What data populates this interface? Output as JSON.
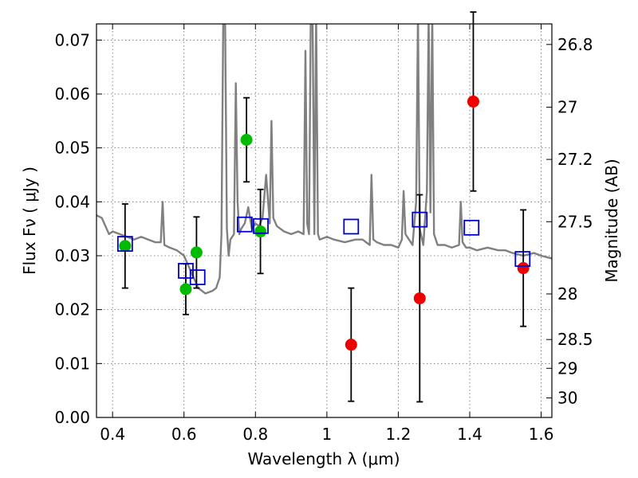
{
  "chart_data": {
    "type": "scatter",
    "xlabel": "Wavelength  λ (μm)",
    "ylabel": "Flux  Fν  ( μJy )",
    "ylabel_right": "Magnitude (AB)",
    "xlim": [
      0.355,
      1.63
    ],
    "ylim": [
      0.0,
      0.073
    ],
    "grid": true,
    "x_ticks": [
      {
        "value": 0.4,
        "label": "0.4"
      },
      {
        "value": 0.6,
        "label": "0.6"
      },
      {
        "value": 0.8,
        "label": "0.8"
      },
      {
        "value": 1.0,
        "label": "1"
      },
      {
        "value": 1.2,
        "label": "1.2"
      },
      {
        "value": 1.4,
        "label": "1.4"
      },
      {
        "value": 1.6,
        "label": "1.6"
      }
    ],
    "y_ticks": [
      {
        "value": 0.0,
        "label": "0.00"
      },
      {
        "value": 0.01,
        "label": "0.01"
      },
      {
        "value": 0.02,
        "label": "0.02"
      },
      {
        "value": 0.03,
        "label": "0.03"
      },
      {
        "value": 0.04,
        "label": "0.04"
      },
      {
        "value": 0.05,
        "label": "0.05"
      },
      {
        "value": 0.06,
        "label": "0.06"
      },
      {
        "value": 0.07,
        "label": "0.07"
      }
    ],
    "mag_ticks": [
      {
        "mag": 26.8,
        "label": "26.8"
      },
      {
        "mag": 27.0,
        "label": "27"
      },
      {
        "mag": 27.2,
        "label": "27.2"
      },
      {
        "mag": 27.5,
        "label": "27.5"
      },
      {
        "mag": 28.0,
        "label": "28"
      },
      {
        "mag": 28.5,
        "label": "28.5"
      },
      {
        "mag": 29.0,
        "label": "29"
      },
      {
        "mag": 30.0,
        "label": "30"
      }
    ],
    "colors": {
      "spectrum": "#808080",
      "green_points": "#00bb00",
      "red_points": "#ee0000",
      "model_squares": "#0000cc",
      "error_bars": "#000000",
      "grid": "#666666"
    },
    "spectrum": {
      "x": [
        0.355,
        0.37,
        0.38,
        0.39,
        0.4,
        0.42,
        0.44,
        0.46,
        0.48,
        0.5,
        0.52,
        0.535,
        0.54,
        0.545,
        0.56,
        0.58,
        0.6,
        0.62,
        0.64,
        0.66,
        0.68,
        0.69,
        0.7,
        0.705,
        0.71,
        0.715,
        0.72,
        0.725,
        0.73,
        0.74,
        0.745,
        0.75,
        0.755,
        0.76,
        0.77,
        0.78,
        0.79,
        0.8,
        0.81,
        0.82,
        0.83,
        0.84,
        0.845,
        0.85,
        0.86,
        0.88,
        0.9,
        0.92,
        0.935,
        0.94,
        0.945,
        0.95,
        0.955,
        0.96,
        0.965,
        0.97,
        0.975,
        0.98,
        1.0,
        1.02,
        1.05,
        1.08,
        1.1,
        1.12,
        1.125,
        1.13,
        1.14,
        1.16,
        1.18,
        1.2,
        1.21,
        1.215,
        1.22,
        1.24,
        1.25,
        1.255,
        1.26,
        1.27,
        1.28,
        1.285,
        1.29,
        1.295,
        1.3,
        1.31,
        1.33,
        1.35,
        1.37,
        1.375,
        1.38,
        1.39,
        1.4,
        1.42,
        1.45,
        1.48,
        1.5,
        1.52,
        1.55,
        1.58,
        1.6,
        1.63
      ],
      "y": [
        0.0375,
        0.037,
        0.0355,
        0.034,
        0.0345,
        0.034,
        0.0335,
        0.033,
        0.0335,
        0.033,
        0.0325,
        0.0325,
        0.04,
        0.032,
        0.0315,
        0.031,
        0.03,
        0.027,
        0.024,
        0.023,
        0.0235,
        0.024,
        0.026,
        0.034,
        0.075,
        0.075,
        0.035,
        0.03,
        0.033,
        0.034,
        0.062,
        0.04,
        0.034,
        0.035,
        0.036,
        0.039,
        0.035,
        0.036,
        0.0355,
        0.037,
        0.045,
        0.036,
        0.055,
        0.037,
        0.0355,
        0.0345,
        0.034,
        0.0345,
        0.034,
        0.068,
        0.036,
        0.034,
        0.075,
        0.075,
        0.034,
        0.075,
        0.034,
        0.033,
        0.0335,
        0.033,
        0.0325,
        0.033,
        0.033,
        0.032,
        0.045,
        0.033,
        0.0325,
        0.032,
        0.032,
        0.0315,
        0.033,
        0.042,
        0.034,
        0.032,
        0.04,
        0.075,
        0.035,
        0.032,
        0.042,
        0.075,
        0.038,
        0.075,
        0.034,
        0.032,
        0.032,
        0.0315,
        0.032,
        0.04,
        0.0325,
        0.0315,
        0.0315,
        0.031,
        0.0315,
        0.031,
        0.031,
        0.0305,
        0.03,
        0.0305,
        0.03,
        0.0295
      ]
    },
    "green_points": [
      {
        "x": 0.435,
        "y": 0.0318,
        "err": 0.0078
      },
      {
        "x": 0.605,
        "y": 0.0238,
        "err": 0.0047
      },
      {
        "x": 0.635,
        "y": 0.0306,
        "err": 0.0066
      },
      {
        "x": 0.775,
        "y": 0.0515,
        "err": 0.0078
      },
      {
        "x": 0.814,
        "y": 0.0345,
        "err": 0.0078
      }
    ],
    "red_points": [
      {
        "x": 1.068,
        "y": 0.0135,
        "err": 0.0105
      },
      {
        "x": 1.26,
        "y": 0.0221,
        "err": 0.0192
      },
      {
        "x": 1.41,
        "y": 0.0586,
        "err": 0.0166
      },
      {
        "x": 1.55,
        "y": 0.0277,
        "err": 0.0108
      }
    ],
    "model_squares": [
      {
        "x": 0.435,
        "y": 0.0322
      },
      {
        "x": 0.605,
        "y": 0.0272
      },
      {
        "x": 0.638,
        "y": 0.026
      },
      {
        "x": 0.77,
        "y": 0.0358
      },
      {
        "x": 0.815,
        "y": 0.0355
      },
      {
        "x": 1.068,
        "y": 0.0354
      },
      {
        "x": 1.26,
        "y": 0.0367
      },
      {
        "x": 1.405,
        "y": 0.0352
      },
      {
        "x": 1.548,
        "y": 0.0294
      }
    ]
  }
}
